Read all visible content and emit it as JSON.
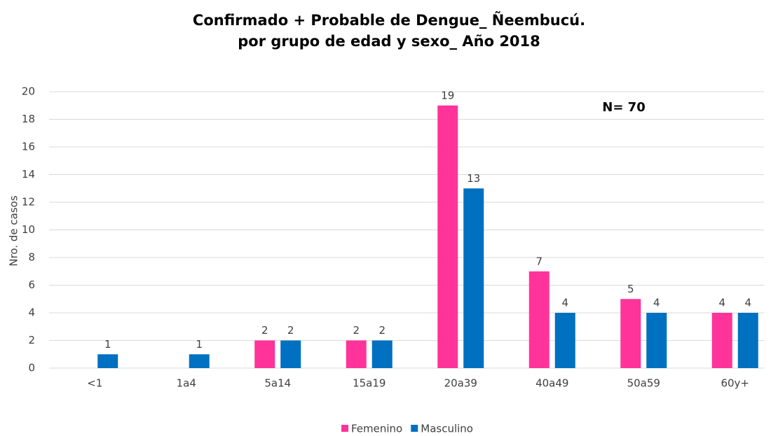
{
  "chart_data": {
    "type": "bar",
    "title": [
      "Confirmado + Probable de Dengue_ Ñeembucú.",
      "por grupo de edad y sexo_ Año 2018"
    ],
    "annotation": "N= 70",
    "y_label": "Nro. de casos",
    "categories": [
      "<1",
      "1a4",
      "5a14",
      "15a19",
      "20a39",
      "40a49",
      "50a59",
      "60y+"
    ],
    "series": [
      {
        "name": "Femenino",
        "color": "#ff3399",
        "values": [
          null,
          null,
          2,
          2,
          19,
          7,
          5,
          4
        ]
      },
      {
        "name": "Masculino",
        "color": "#0070c0",
        "values": [
          1,
          1,
          2,
          2,
          13,
          4,
          4,
          4
        ]
      }
    ],
    "ylim": [
      0,
      20
    ],
    "yticks": [
      0,
      2,
      4,
      6,
      8,
      10,
      12,
      14,
      16,
      18,
      20
    ],
    "grid": true,
    "legend": "bottom"
  }
}
